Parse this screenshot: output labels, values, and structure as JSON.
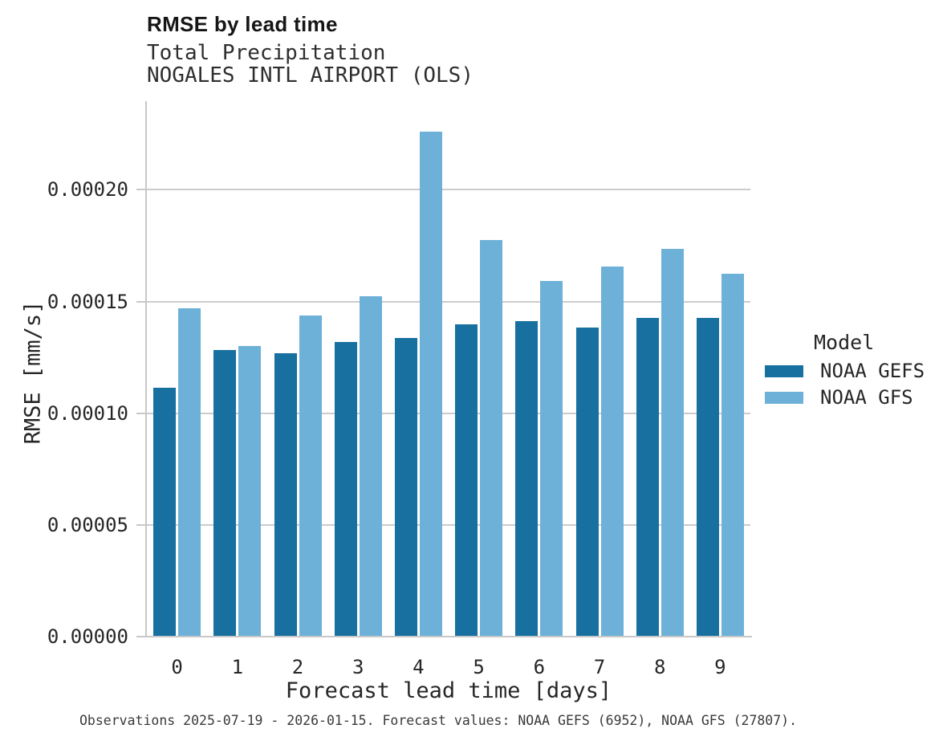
{
  "header": {
    "title": "RMSE by lead time",
    "subtitle1": "Total Precipitation",
    "subtitle2": "NOGALES INTL AIRPORT (OLS)"
  },
  "legend": {
    "title": "Model",
    "items": [
      {
        "label": "NOAA GEFS",
        "color": "#17709F"
      },
      {
        "label": "NOAA GFS",
        "color": "#6DB1D8"
      }
    ]
  },
  "caption": "Observations 2025-07-19 - 2026-01-15. Forecast values: NOAA GEFS (6952), NOAA GFS (27807).",
  "colors": {
    "gefs": "#17709F",
    "gfs": "#6DB1D8",
    "gridline": "#CCCCCC",
    "spine": "#C8C8C8",
    "text": "#262626"
  },
  "chart_data": {
    "type": "bar",
    "title": "RMSE by lead time",
    "subtitle": [
      "Total Precipitation",
      "NOGALES INTL AIRPORT (OLS)"
    ],
    "xlabel": "Forecast lead time [days]",
    "ylabel": "RMSE [mm/s]",
    "categories": [
      "0",
      "1",
      "2",
      "3",
      "4",
      "5",
      "6",
      "7",
      "8",
      "9"
    ],
    "series": [
      {
        "name": "NOAA GEFS",
        "color": "#17709F",
        "values": [
          0.0001113,
          0.0001283,
          0.0001269,
          0.0001318,
          0.0001335,
          0.0001399,
          0.0001413,
          0.0001383,
          0.0001426,
          0.0001428
        ]
      },
      {
        "name": "NOAA GFS",
        "color": "#6DB1D8",
        "values": [
          0.0001471,
          0.0001301,
          0.0001438,
          0.0001523,
          0.0002261,
          0.0001775,
          0.0001591,
          0.0001657,
          0.0001736,
          0.0001624
        ]
      }
    ],
    "ylim": [
      0,
      0.00024
    ],
    "yticks": [
      {
        "value": 0.0,
        "label": "0.00000"
      },
      {
        "value": 5e-05,
        "label": "0.00005"
      },
      {
        "value": 0.0001,
        "label": "0.00010"
      },
      {
        "value": 0.00015,
        "label": "0.00015"
      },
      {
        "value": 0.0002,
        "label": "0.00020"
      }
    ],
    "grid": "horizontal",
    "legend_position": "right",
    "legend_title": "Model"
  }
}
